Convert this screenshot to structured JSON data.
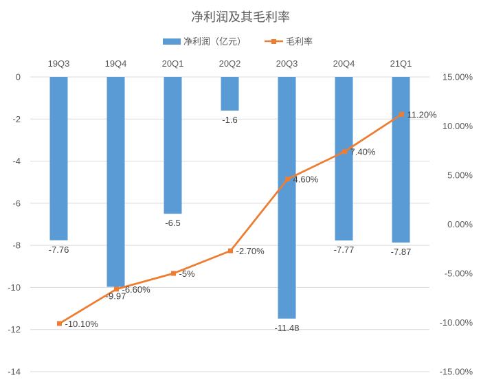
{
  "chart_data": {
    "type": "bar+line",
    "title": "净利润及其毛利率",
    "categories": [
      "19Q3",
      "19Q4",
      "20Q1",
      "20Q2",
      "20Q3",
      "20Q4",
      "21Q1"
    ],
    "series": [
      {
        "name": "净利润（亿元）",
        "type": "bar",
        "axis": "left",
        "color": "#5b9bd5",
        "values": [
          -7.76,
          -9.97,
          -6.5,
          -1.6,
          -11.48,
          -7.77,
          -7.87
        ],
        "labels": [
          "-7.76",
          "-9.97",
          "-6.5",
          "-1.6",
          "-11.48",
          "-7.77",
          "-7.87"
        ]
      },
      {
        "name": "毛利率",
        "type": "line",
        "axis": "right",
        "color": "#ed7d31",
        "values": [
          -10.1,
          -6.6,
          -5.0,
          -2.7,
          4.6,
          7.4,
          11.2
        ],
        "labels": [
          "-10.10%",
          "-6.60%",
          "-5%",
          "-2.70%",
          "4.60%",
          "7.40%",
          "11.20%"
        ]
      }
    ],
    "y_left": {
      "range": [
        -14,
        0
      ],
      "ticks": [
        "0",
        "-2",
        "-4",
        "-6",
        "-8",
        "-10",
        "-12",
        "-14"
      ]
    },
    "y_right": {
      "range": [
        -15,
        15
      ],
      "ticks": [
        "15.00%",
        "10.00%",
        "5.00%",
        "0.00%",
        "-5.00%",
        "-10.00%",
        "-15.00%"
      ]
    },
    "grid": true,
    "legend_position": "top"
  }
}
